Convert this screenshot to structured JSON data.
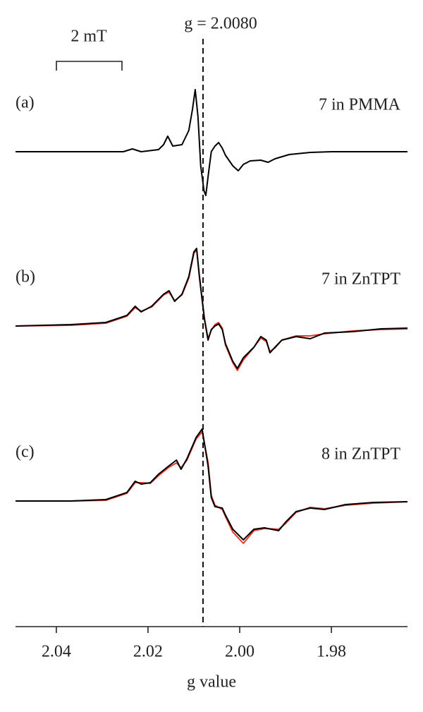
{
  "chart_data": [
    {
      "type": "line",
      "panel_label": "(a)",
      "annotation": "7 in PMMA",
      "scale_bar_label": "2 mT",
      "reference_line": {
        "value": 2.008,
        "label": "g = 2.0080"
      },
      "xlim": [
        2.0489,
        1.9634
      ],
      "ylim": [
        -100,
        100
      ],
      "x": [
        2.0489,
        2.0292,
        2.0254,
        2.0234,
        2.0215,
        2.0177,
        2.0166,
        2.0157,
        2.0146,
        2.0126,
        2.0111,
        2.0103,
        2.0097,
        2.0091,
        2.0085,
        2.0078,
        2.0074,
        2.0068,
        2.0062,
        2.0054,
        2.0046,
        2.0038,
        2.0031,
        2.0015,
        2.0003,
        1.9992,
        1.9977,
        1.9954,
        1.9938,
        1.9923,
        1.9892,
        1.9846,
        1.98,
        1.9634
      ],
      "series": [
        {
          "color": "#000000",
          "values": [
            0,
            0,
            0,
            4,
            0,
            3,
            10,
            22,
            8,
            10,
            30,
            60,
            88,
            50,
            -20,
            -55,
            -62,
            -30,
            0,
            8,
            13,
            5,
            -5,
            -20,
            -27,
            -18,
            -13,
            -12,
            -15,
            -10,
            -4,
            -1,
            0,
            0
          ]
        }
      ]
    },
    {
      "type": "line",
      "panel_label": "(b)",
      "annotation": "7 in ZnTPT",
      "xlim": [
        2.0489,
        1.9634
      ],
      "ylim": [
        -100,
        100
      ],
      "x": [
        2.0489,
        2.0369,
        2.0292,
        2.0246,
        2.0228,
        2.0215,
        2.0192,
        2.0166,
        2.0154,
        2.0142,
        2.0126,
        2.0111,
        2.01,
        2.0094,
        2.0088,
        2.0077,
        2.0069,
        2.0062,
        2.0054,
        2.0046,
        2.0038,
        2.0031,
        2.0015,
        2.0005,
        1.9992,
        1.9969,
        1.9954,
        1.9942,
        1.9934,
        1.9923,
        1.9908,
        1.9877,
        1.9846,
        1.9815,
        1.9754,
        1.9692,
        1.9634
      ],
      "series": [
        {
          "color": "#e8392a",
          "values": [
            0,
            1,
            4,
            14,
            26,
            21,
            27,
            44,
            48,
            36,
            44,
            68,
            103,
            108,
            72,
            12,
            -18,
            -6,
            2,
            5,
            -3,
            -27,
            -52,
            -63,
            -48,
            -30,
            -17,
            -22,
            -36,
            -31,
            -20,
            -14,
            -14,
            -11,
            -7,
            -5,
            -4
          ]
        },
        {
          "color": "#000000",
          "values": [
            0,
            2,
            5,
            15,
            28,
            20,
            28,
            45,
            50,
            35,
            45,
            70,
            105,
            110,
            70,
            10,
            -20,
            -5,
            0,
            3,
            -5,
            -25,
            -50,
            -60,
            -45,
            -30,
            -15,
            -20,
            -38,
            -30,
            -20,
            -15,
            -18,
            -10,
            -8,
            -4,
            -3
          ]
        }
      ]
    },
    {
      "type": "line",
      "panel_label": "(c)",
      "annotation": "8 in ZnTPT",
      "xlabel": "g value",
      "xlim": [
        2.0489,
        1.9634
      ],
      "ylim": [
        -100,
        100
      ],
      "xticks": [
        2.04,
        2.02,
        {
          "value": 2,
          "label": "2.00"
        },
        1.98
      ],
      "x": [
        2.0489,
        2.0369,
        2.0292,
        2.0246,
        2.0228,
        2.0215,
        2.0195,
        2.0177,
        2.0154,
        2.0138,
        2.0128,
        2.0115,
        2.0095,
        2.0082,
        2.0069,
        2.0062,
        2.0054,
        2.0038,
        2.0031,
        2.0015,
        1.9992,
        1.9969,
        1.9946,
        1.9915,
        1.99,
        1.9877,
        1.9846,
        1.9815,
        1.9769,
        1.9708,
        1.9634
      ],
      "series": [
        {
          "color": "#e8392a",
          "values": [
            0,
            0,
            1,
            11,
            26,
            26,
            25,
            36,
            48,
            54,
            47,
            58,
            88,
            98,
            55,
            8,
            -6,
            -12,
            -22,
            -44,
            -60,
            -42,
            -39,
            -40,
            -32,
            -16,
            -9,
            -11,
            -6,
            -3,
            -1
          ]
        },
        {
          "color": "#000000",
          "values": [
            0,
            0,
            2,
            12,
            28,
            24,
            26,
            38,
            50,
            58,
            45,
            60,
            90,
            102,
            50,
            5,
            -8,
            -10,
            -20,
            -40,
            -55,
            -40,
            -38,
            -42,
            -30,
            -15,
            -10,
            -12,
            -5,
            -2,
            -1
          ]
        }
      ]
    }
  ]
}
